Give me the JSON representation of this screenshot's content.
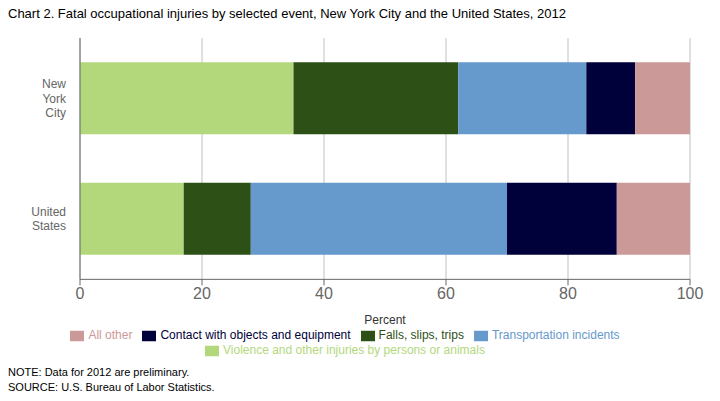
{
  "chart_data": {
    "type": "bar",
    "orientation": "horizontal",
    "stacked": true,
    "title": "Chart 2. Fatal occupational injuries by selected event, New York City and the United States, 2012",
    "categories": [
      "New\nYork\nCity",
      "United\nStates"
    ],
    "series": [
      {
        "name": "Violence and other injuries by persons or animals",
        "color": "#b3d87c",
        "values": [
          35,
          17
        ]
      },
      {
        "name": "Falls, slips, trips",
        "color": "#2d5016",
        "values": [
          27,
          11
        ]
      },
      {
        "name": "Transportation incidents",
        "color": "#6699cc",
        "values": [
          21,
          42
        ]
      },
      {
        "name": "Contact with objects and equipment",
        "color": "#00003a",
        "values": [
          8,
          18
        ]
      },
      {
        "name": "All other",
        "color": "#cc9999",
        "values": [
          9,
          12
        ]
      }
    ],
    "xlabel": "Percent",
    "xlim": [
      0,
      100
    ],
    "xticks": [
      0,
      20,
      40,
      60,
      80,
      100
    ],
    "grid": true,
    "legend": "bottom",
    "annotations": [
      "NOTE: Data for 2012 are preliminary.\nSOURCE: U.S. Bureau of Labor Statistics."
    ]
  }
}
